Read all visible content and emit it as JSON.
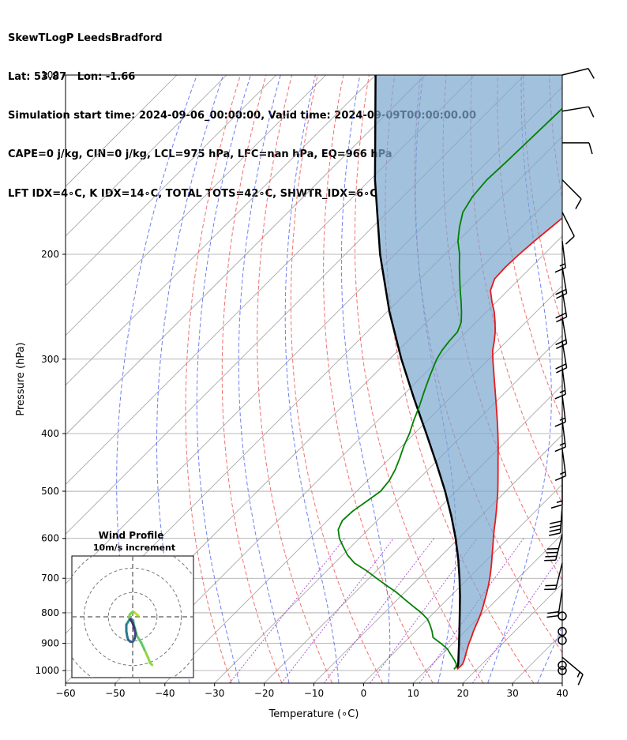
{
  "header": {
    "line1": "SkewTLogP LeedsBradford",
    "line2": "Lat: 53.87   Lon: -1.66",
    "line3": "Simulation start time: 2024-09-06_00:00:00, Valid time: 2024-09-09T00:00:00.00",
    "line4": "CAPE=0 j/kg, CIN=0 j/kg, LCL=975 hPa, LFC=nan hPa, EQ=966 hPa",
    "line5": "LFT IDX=4∘C, K IDX=14∘C, TOTAL TOTS=42∘C, SHWTR_IDX=6∘C"
  },
  "chart_data": [
    {
      "type": "line",
      "title": "SkewTLogP LeedsBradford",
      "xlabel": "Temperature (∘C)",
      "ylabel": "Pressure (hPa)",
      "xlim": [
        -60,
        40
      ],
      "ylim": [
        1050,
        100
      ],
      "y_scale": "log",
      "x_ticks": [
        "−60",
        "−50",
        "−40",
        "−30",
        "−20",
        "−10",
        "0",
        "10",
        "20",
        "30",
        "40"
      ],
      "y_ticks": [
        "100",
        "200",
        "300",
        "400",
        "500",
        "600",
        "700",
        "800",
        "900",
        "1000"
      ],
      "grid": true,
      "colors": {
        "temperature": "#e41a1c",
        "dewpoint": "#008000",
        "parcel": "#000000",
        "cape_fill": "#7ba7cf",
        "dry_adiabat": "#f06060",
        "moist_adiabat": "#4a5ff0",
        "mixing_ratio": "#9933cc",
        "isotherm": "#a0a0a0"
      },
      "series": [
        {
          "name": "temperature",
          "pressure": [
            995,
            985,
            975,
            960,
            940,
            920,
            900,
            880,
            860,
            840,
            820,
            800,
            780,
            760,
            740,
            720,
            700,
            680,
            660,
            640,
            620,
            600,
            580,
            560,
            540,
            520,
            500,
            480,
            460,
            440,
            420,
            400,
            380,
            360,
            340,
            320,
            300,
            290,
            280,
            270,
            260,
            250,
            240,
            230,
            220,
            210,
            200,
            190,
            180,
            170,
            160,
            150,
            140,
            130,
            120,
            110,
            100
          ],
          "values": [
            16.0,
            16.1,
            16.1,
            15.6,
            14.8,
            14.0,
            13.2,
            12.5,
            11.7,
            11.0,
            10.3,
            9.5,
            8.6,
            7.6,
            6.6,
            5.5,
            4.3,
            3.0,
            1.6,
            0.1,
            -1.4,
            -3.0,
            -4.6,
            -6.2,
            -7.9,
            -9.7,
            -11.6,
            -13.7,
            -15.9,
            -18.2,
            -20.6,
            -23.2,
            -26.0,
            -29.0,
            -32.2,
            -35.6,
            -39.2,
            -41.0,
            -42.5,
            -44.2,
            -46.2,
            -48.4,
            -51.0,
            -53.5,
            -55.0,
            -55.2,
            -55.0,
            -54.6,
            -54.0,
            -53.4,
            -53.0,
            -52.8,
            -52.5,
            -52.2,
            -52.0,
            -51.8,
            -51.5
          ]
        },
        {
          "name": "dewpoint",
          "pressure": [
            995,
            985,
            975,
            960,
            940,
            920,
            900,
            880,
            860,
            840,
            820,
            800,
            780,
            760,
            740,
            720,
            700,
            680,
            660,
            640,
            620,
            600,
            580,
            560,
            540,
            520,
            500,
            480,
            460,
            440,
            420,
            400,
            380,
            360,
            340,
            320,
            300,
            290,
            280,
            270,
            260,
            250,
            240,
            230,
            220,
            210,
            200,
            190,
            180,
            170,
            160,
            150,
            140,
            130,
            120,
            110,
            100
          ],
          "values": [
            15.4,
            15.3,
            14.8,
            13.6,
            11.8,
            10.0,
            7.5,
            4.8,
            3.4,
            1.8,
            0.0,
            -2.5,
            -5.5,
            -8.5,
            -11.5,
            -15.0,
            -18.5,
            -22.0,
            -26.0,
            -29.0,
            -31.5,
            -34.0,
            -36.0,
            -37.0,
            -36.8,
            -36.0,
            -35.2,
            -35.6,
            -36.6,
            -38.0,
            -39.6,
            -41.0,
            -42.8,
            -44.5,
            -46.5,
            -48.5,
            -50.5,
            -51.2,
            -51.6,
            -51.8,
            -53.0,
            -55.0,
            -57.2,
            -59.6,
            -62.0,
            -64.5,
            -67.0,
            -70.0,
            -72.5,
            -74.8,
            -76.0,
            -76.5,
            -76.2,
            -76.0,
            -75.8,
            -75.6,
            -75.5
          ]
        },
        {
          "name": "parcel",
          "pressure": [
            990,
            975,
            950,
            900,
            850,
            800,
            750,
            700,
            650,
            600,
            550,
            500,
            450,
            400,
            350,
            300,
            250,
            200,
            150,
            100
          ],
          "values": [
            15.8,
            15.2,
            13.9,
            11.2,
            8.3,
            5.2,
            1.9,
            -1.8,
            -5.9,
            -10.6,
            -16.0,
            -22.2,
            -29.4,
            -37.6,
            -47.0,
            -57.6,
            -69.5,
            -83.0,
            -99.0,
            -120.0
          ]
        }
      ]
    },
    {
      "type": "line",
      "title": "Wind Profile",
      "subtitle": "10m/s increment",
      "hodograph": true,
      "xlim": [
        -25,
        25
      ],
      "ylim": [
        -25,
        25
      ],
      "rings": [
        10,
        20,
        30
      ],
      "u": [
        8.0,
        7.2,
        6.3,
        4.8,
        3.5,
        1.8,
        1.0,
        0.4,
        0.2,
        -0.5,
        -1.5,
        -2.6,
        -2.6,
        -2.2,
        -1.8,
        -1.0,
        0.0,
        0.8,
        1.2,
        0.6,
        0.0,
        -0.8,
        -1.5,
        -1.2,
        0.0,
        1.0,
        1.8,
        2.3
      ],
      "v": [
        -19.8,
        -19.0,
        -16.7,
        -13.4,
        -10.6,
        -7.9,
        -5.0,
        -3.0,
        -1.4,
        -1.0,
        -1.5,
        -3.2,
        -6.0,
        -8.3,
        -9.5,
        -10.2,
        -10.3,
        -9.0,
        -6.9,
        -4.6,
        -2.6,
        -1.2,
        -0.3,
        1.0,
        2.1,
        1.6,
        0.8,
        0.6
      ],
      "colormap": "viridis"
    }
  ],
  "wind_barbs": {
    "levels_hpa": [
      100,
      115,
      130,
      150,
      170,
      190,
      210,
      230,
      255,
      280,
      310,
      345,
      380,
      425,
      475,
      530,
      590,
      660,
      730,
      810,
      860,
      890,
      950,
      980,
      1000
    ],
    "wind_u_kt": [
      -12,
      -12,
      -12,
      -8,
      -4,
      -2,
      -3,
      -3,
      -3,
      -3,
      -2,
      -2,
      -2,
      -2,
      0,
      3,
      10,
      5,
      3,
      0,
      0,
      0,
      -12,
      0,
      0
    ],
    "wind_v_kt": [
      -3,
      -2,
      0,
      8,
      8,
      16,
      18,
      18,
      18,
      18,
      16,
      16,
      16,
      15,
      15,
      40,
      40,
      20,
      20,
      0,
      0,
      0,
      10,
      0,
      0
    ]
  }
}
